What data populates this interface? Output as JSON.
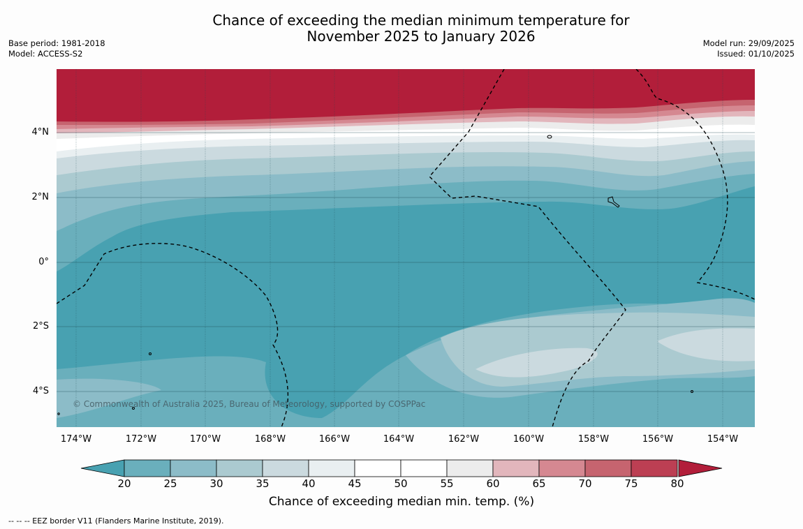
{
  "title": {
    "line1": "Chance of exceeding the median minimum temperature for",
    "line2": "November 2025 to January 2026"
  },
  "meta": {
    "base_period": "Base period: 1981-2018",
    "model": "Model: ACCESS-S2",
    "model_run": "Model run: 29/09/2025",
    "issued": "Issued: 01/10/2025"
  },
  "axes": {
    "lat_labels": [
      "4°N",
      "2°N",
      "0°",
      "2°S",
      "4°S"
    ],
    "lon_labels": [
      "174°W",
      "172°W",
      "170°W",
      "168°W",
      "166°W",
      "164°W",
      "162°W",
      "160°W",
      "158°W",
      "156°W",
      "154°W"
    ]
  },
  "copyright": "© Commonwealth of Australia 2025, Bureau of Meteorology, supported by COSPPac",
  "colorbar": {
    "ticks": [
      "20",
      "25",
      "30",
      "35",
      "40",
      "45",
      "50",
      "55",
      "60",
      "65",
      "70",
      "75",
      "80"
    ],
    "colors": [
      "#48a1b1",
      "#6aafbc",
      "#8cbcc8",
      "#abcad0",
      "#cbdadf",
      "#e9eff1",
      "#ffffff",
      "#ffffff",
      "#ececec",
      "#e2b6bc",
      "#d58891",
      "#c6646f",
      "#bc3f53",
      "#b21e3a"
    ],
    "label": "Chance of exceeding median min. temp. (%)"
  },
  "footnote": "--  --  -- EEZ border V11 (Flanders Marine Institute, 2019)."
}
